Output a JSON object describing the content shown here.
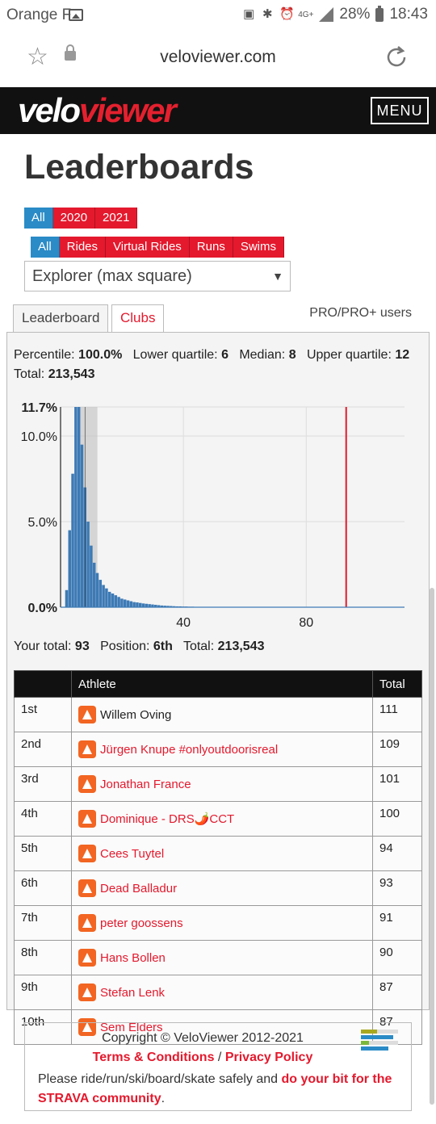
{
  "status_bar": {
    "carrier": "Orange F",
    "network": "4G+",
    "battery": "28%",
    "time": "18:43"
  },
  "browser": {
    "url": "veloviewer.com"
  },
  "site": {
    "logo_part1": "velo",
    "logo_part2": "viewer",
    "menu_label": "MENU",
    "brand_color": "#e4192d"
  },
  "page": {
    "title": "Leaderboards"
  },
  "year_filters": [
    {
      "label": "All",
      "active": true
    },
    {
      "label": "2020",
      "active": false
    },
    {
      "label": "2021",
      "active": false
    }
  ],
  "sport_filters": [
    {
      "label": "All",
      "active": true
    },
    {
      "label": "Rides",
      "active": false
    },
    {
      "label": "Virtual Rides",
      "active": false
    },
    {
      "label": "Runs",
      "active": false
    },
    {
      "label": "Swims",
      "active": false
    }
  ],
  "metric_select": {
    "value": "Explorer (max square)"
  },
  "tabs": {
    "leaderboard": "Leaderboard",
    "clubs": "Clubs",
    "pro_label": "PRO/PRO+ users"
  },
  "stats": {
    "percentile_label": "Percentile:",
    "percentile": "100.0%",
    "lower_quartile_label": "Lower quartile:",
    "lower_quartile": "6",
    "median_label": "Median:",
    "median": "8",
    "upper_quartile_label": "Upper quartile:",
    "upper_quartile": "12",
    "total_label": "Total:",
    "total": "213,543"
  },
  "chart_data": {
    "type": "bar",
    "ytick_labels": [
      "11.7%",
      "10.0%",
      "5.0%",
      "0.0%"
    ],
    "xtick_labels": [
      "40",
      "80"
    ],
    "ylim": [
      0,
      11.7
    ],
    "xlim": [
      0,
      112
    ],
    "grid": true,
    "x": [
      2,
      3,
      4,
      5,
      6,
      7,
      8,
      9,
      10,
      11,
      12,
      13,
      14,
      15,
      16,
      17,
      18,
      19,
      20,
      21,
      22,
      23,
      24,
      25,
      26,
      27,
      28,
      29,
      30,
      31,
      32,
      33,
      34,
      35,
      36,
      37,
      38,
      39,
      40,
      41,
      42,
      43,
      44,
      45
    ],
    "values": [
      1.0,
      4.5,
      7.8,
      11.7,
      11.7,
      9.5,
      7.0,
      5.0,
      3.6,
      2.6,
      2.0,
      1.6,
      1.3,
      1.1,
      0.9,
      0.8,
      0.7,
      0.6,
      0.5,
      0.45,
      0.4,
      0.35,
      0.3,
      0.28,
      0.25,
      0.22,
      0.2,
      0.18,
      0.16,
      0.14,
      0.12,
      0.1,
      0.09,
      0.08,
      0.07,
      0.06,
      0.05,
      0.05,
      0.04,
      0.04,
      0.03,
      0.03,
      0.02,
      0.02
    ],
    "quartile_band": [
      6,
      12
    ],
    "median_line": 8,
    "your_total_line": 93
  },
  "position_line": {
    "your_total_label": "Your total:",
    "your_total": "93",
    "position_label": "Position:",
    "position": "6th",
    "total_label": "Total:",
    "total": "213,543"
  },
  "table": {
    "headers": [
      "",
      "Athlete",
      "Total"
    ],
    "rows": [
      {
        "pos": "1st",
        "name": "Willem Oving",
        "total": "111",
        "link": false
      },
      {
        "pos": "2nd",
        "name": "Jürgen Knupe #onlyoutdoorisreal",
        "total": "109",
        "link": true
      },
      {
        "pos": "3rd",
        "name": "Jonathan France",
        "total": "101",
        "link": true
      },
      {
        "pos": "4th",
        "name": "Dominique - DRS🌶️CCT",
        "total": "100",
        "link": true
      },
      {
        "pos": "5th",
        "name": "Cees Tuytel",
        "total": "94",
        "link": true
      },
      {
        "pos": "6th",
        "name": "Dead Balladur",
        "total": "93",
        "link": true
      },
      {
        "pos": "7th",
        "name": "peter goossens",
        "total": "91",
        "link": true
      },
      {
        "pos": "8th",
        "name": "Hans Bollen",
        "total": "90",
        "link": true
      },
      {
        "pos": "9th",
        "name": "Stefan Lenk",
        "total": "87",
        "link": true
      },
      {
        "pos": "10th",
        "name": "Sem Elders",
        "total": "87",
        "link": true
      }
    ]
  },
  "footer": {
    "copyright": "Copyright © VeloViewer 2012-2021",
    "terms": "Terms & Conditions",
    "separator": "/",
    "privacy": "Privacy Policy",
    "safety_text": "Please ride/run/ski/board/skate safely and",
    "safety_link": "do your bit for the STRAVA community",
    "period": "."
  }
}
